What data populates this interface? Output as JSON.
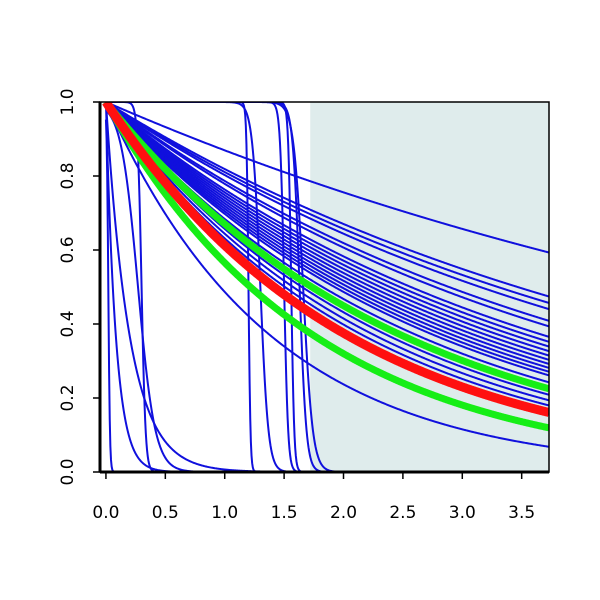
{
  "chart_data": {
    "type": "line",
    "title": "",
    "xlabel": "",
    "ylabel": "",
    "xlim": [
      -0.05,
      3.73
    ],
    "ylim": [
      0.0,
      1.0
    ],
    "x_ticks": [
      "0.0",
      "0.5",
      "1.0",
      "1.5",
      "2.0",
      "2.5",
      "3.0",
      "3.5"
    ],
    "y_ticks": [
      "0.0",
      "0.2",
      "0.4",
      "0.6",
      "0.8",
      "1.0"
    ],
    "shaded_region": {
      "x_from": 1.72,
      "x_to": 3.73,
      "color": "#dfecec"
    },
    "grid": false,
    "legend": "none",
    "colors": {
      "ensemble": "#1010dd",
      "central": "#ff1010",
      "band": "#16ee16",
      "axis": "#000000"
    },
    "series": [
      {
        "kind": "ensemble",
        "shape": "exponential",
        "rate": 0.14
      },
      {
        "kind": "ensemble",
        "shape": "exponential",
        "rate": 0.2
      },
      {
        "kind": "ensemble",
        "shape": "exponential",
        "rate": 0.21
      },
      {
        "kind": "ensemble",
        "shape": "exponential",
        "rate": 0.22
      },
      {
        "kind": "ensemble",
        "shape": "exponential",
        "rate": 0.24
      },
      {
        "kind": "ensemble",
        "shape": "exponential",
        "rate": 0.25
      },
      {
        "kind": "ensemble",
        "shape": "exponential",
        "rate": 0.27
      },
      {
        "kind": "ensemble",
        "shape": "exponential",
        "rate": 0.28
      },
      {
        "kind": "ensemble",
        "shape": "exponential",
        "rate": 0.29
      },
      {
        "kind": "ensemble",
        "shape": "exponential",
        "rate": 0.3
      },
      {
        "kind": "ensemble",
        "shape": "exponential",
        "rate": 0.31
      },
      {
        "kind": "ensemble",
        "shape": "exponential",
        "rate": 0.32
      },
      {
        "kind": "ensemble",
        "shape": "exponential",
        "rate": 0.33
      },
      {
        "kind": "ensemble",
        "shape": "exponential",
        "rate": 0.34
      },
      {
        "kind": "ensemble",
        "shape": "exponential",
        "rate": 0.35
      },
      {
        "kind": "ensemble",
        "shape": "exponential",
        "rate": 0.36
      },
      {
        "kind": "ensemble",
        "shape": "exponential",
        "rate": 0.38
      },
      {
        "kind": "ensemble",
        "shape": "exponential",
        "rate": 0.4
      },
      {
        "kind": "ensemble",
        "shape": "exponential",
        "rate": 0.42
      },
      {
        "kind": "ensemble",
        "shape": "exponential",
        "rate": 0.44
      },
      {
        "kind": "ensemble",
        "shape": "exponential",
        "rate": 0.46
      },
      {
        "kind": "ensemble",
        "shape": "exponential",
        "rate": 0.48
      },
      {
        "kind": "ensemble",
        "shape": "exponential",
        "rate": 0.5
      },
      {
        "kind": "ensemble",
        "shape": "exponential",
        "rate": 0.72
      },
      {
        "kind": "ensemble",
        "shape": "exponential",
        "rate": 5.0
      },
      {
        "kind": "ensemble",
        "shape": "exponential",
        "rate": 12.0
      },
      {
        "kind": "ensemble",
        "shape": "logistic",
        "midpoint": 0.02,
        "steepness": 150
      },
      {
        "kind": "ensemble",
        "shape": "logistic",
        "midpoint": 0.3,
        "steepness": 60
      },
      {
        "kind": "ensemble",
        "shape": "logistic",
        "midpoint": 0.27,
        "steepness": 14
      },
      {
        "kind": "ensemble",
        "shape": "logistic",
        "midpoint": 1.2,
        "steepness": 120
      },
      {
        "kind": "ensemble",
        "shape": "logistic",
        "midpoint": 1.3,
        "steepness": 30
      },
      {
        "kind": "ensemble",
        "shape": "logistic",
        "midpoint": 1.5,
        "steepness": 60
      },
      {
        "kind": "ensemble",
        "shape": "logistic",
        "midpoint": 1.56,
        "steepness": 80
      },
      {
        "kind": "ensemble",
        "shape": "logistic",
        "midpoint": 1.63,
        "steepness": 35
      },
      {
        "kind": "ensemble",
        "shape": "logistic",
        "midpoint": 1.66,
        "steepness": 25
      },
      {
        "kind": "band",
        "shape": "exponential",
        "rate": 0.4
      },
      {
        "kind": "band",
        "shape": "exponential",
        "rate": 0.57
      },
      {
        "kind": "central",
        "shape": "exponential",
        "rate": 0.49
      }
    ]
  }
}
